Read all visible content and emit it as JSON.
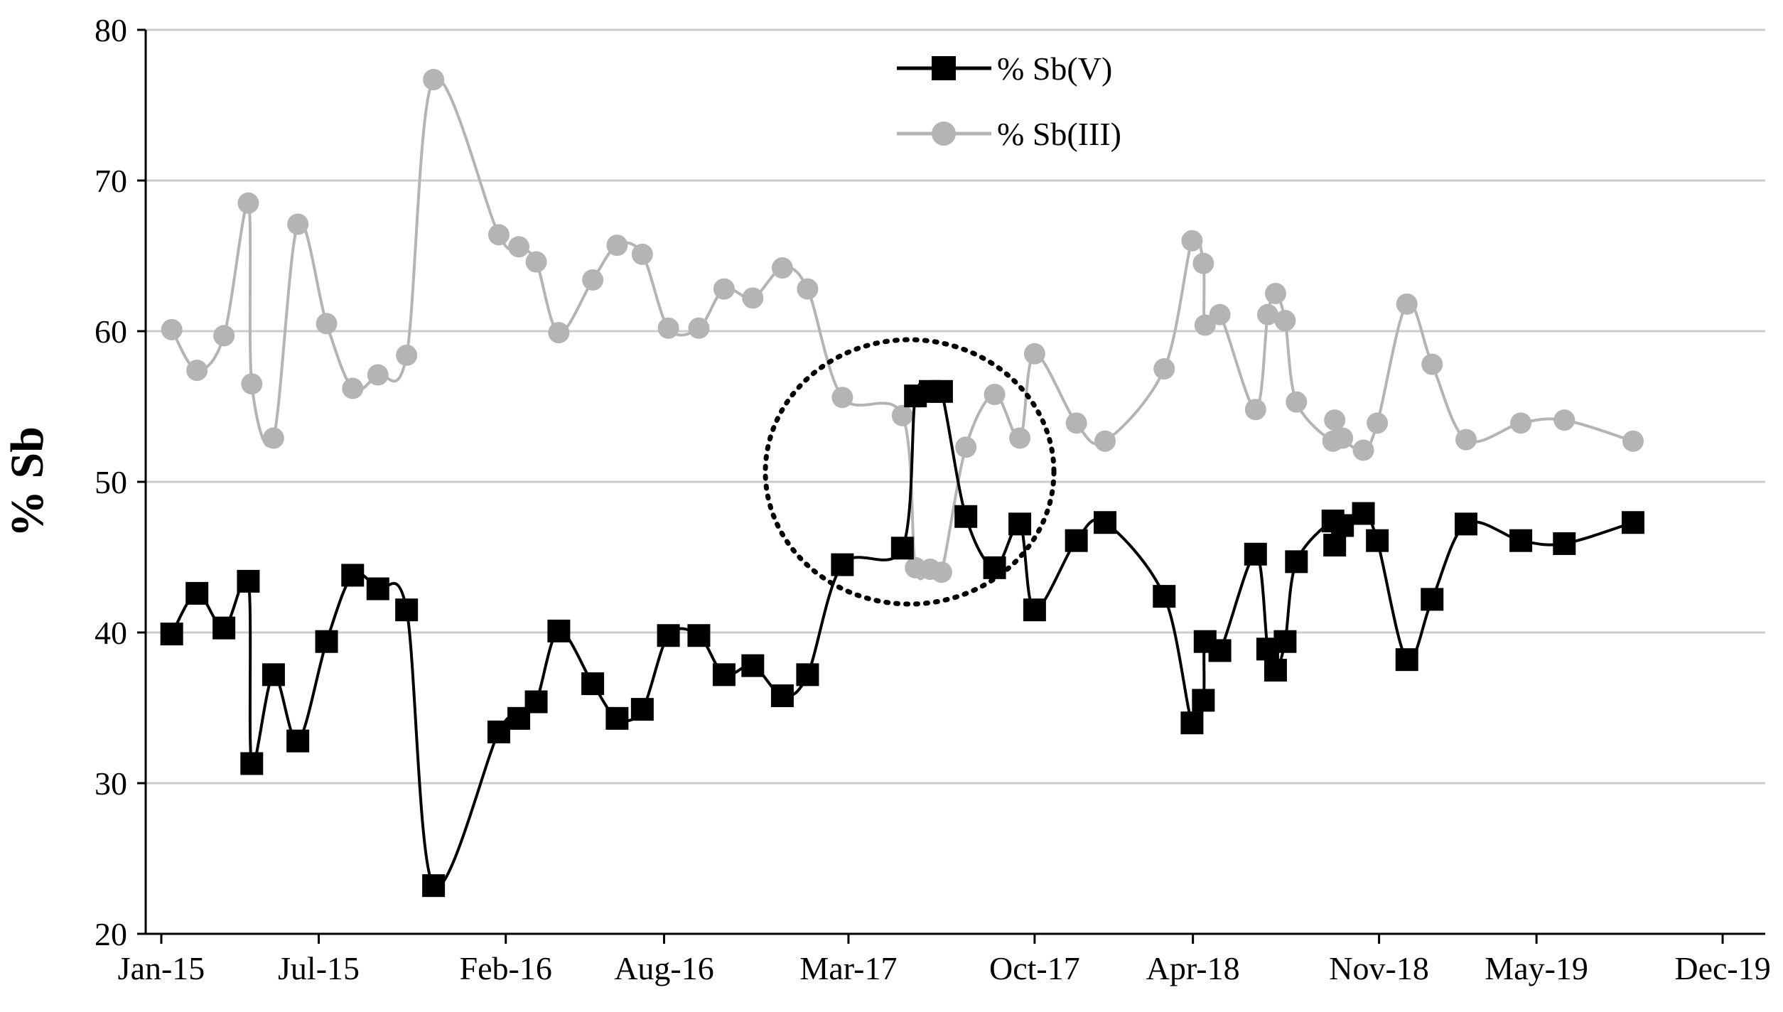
{
  "chart_data": {
    "type": "line",
    "title": "",
    "xlabel": "",
    "ylabel": "% Sb",
    "ylim": [
      20,
      80
    ],
    "yticks": [
      20,
      30,
      40,
      50,
      60,
      70,
      80
    ],
    "xlim": [
      "2015-01-01",
      "2020-01-01"
    ],
    "xticks": [
      {
        "date": "2015-01-01",
        "label": "Jan-15"
      },
      {
        "date": "2015-07-01",
        "label": "Jul-15"
      },
      {
        "date": "2016-02-01",
        "label": "Feb-16"
      },
      {
        "date": "2016-08-01",
        "label": "Aug-16"
      },
      {
        "date": "2017-03-01",
        "label": "Mar-17"
      },
      {
        "date": "2017-10-01",
        "label": "Oct-17"
      },
      {
        "date": "2018-04-01",
        "label": "Apr-18"
      },
      {
        "date": "2018-11-01",
        "label": "Nov-18"
      },
      {
        "date": "2019-05-01",
        "label": "May-19"
      },
      {
        "date": "2019-12-01",
        "label": "Dec-19"
      }
    ],
    "grid": "horizontal",
    "legend_position": "top-center",
    "annotation": {
      "type": "dotted-circle",
      "center": [
        "2017-06-15",
        50
      ],
      "description": ""
    },
    "series": [
      {
        "name": "% Sb(V)",
        "color": "#000000",
        "marker": "square",
        "points": [
          [
            "2015-01-13",
            39.9
          ],
          [
            "2015-02-11",
            42.6
          ],
          [
            "2015-03-14",
            40.3
          ],
          [
            "2015-04-11",
            43.4
          ],
          [
            "2015-04-15",
            31.3
          ],
          [
            "2015-05-10",
            37.2
          ],
          [
            "2015-06-07",
            32.8
          ],
          [
            "2015-07-10",
            39.4
          ],
          [
            "2015-08-09",
            43.8
          ],
          [
            "2015-09-07",
            42.9
          ],
          [
            "2015-10-10",
            41.5
          ],
          [
            "2015-11-10",
            23.2
          ],
          [
            "2016-01-24",
            33.4
          ],
          [
            "2016-02-16",
            34.3
          ],
          [
            "2016-03-07",
            35.4
          ],
          [
            "2016-04-02",
            40.1
          ],
          [
            "2016-05-11",
            36.6
          ],
          [
            "2016-06-08",
            34.3
          ],
          [
            "2016-07-07",
            34.9
          ],
          [
            "2016-08-06",
            39.8
          ],
          [
            "2016-09-10",
            39.8
          ],
          [
            "2016-10-09",
            37.2
          ],
          [
            "2016-11-11",
            37.8
          ],
          [
            "2016-12-15",
            35.8
          ],
          [
            "2017-01-13",
            37.2
          ],
          [
            "2017-02-22",
            44.5
          ],
          [
            "2017-05-02",
            45.6
          ],
          [
            "2017-05-17",
            55.7
          ],
          [
            "2017-06-03",
            56.0
          ],
          [
            "2017-06-16",
            56.0
          ],
          [
            "2017-07-14",
            47.7
          ],
          [
            "2017-08-16",
            44.3
          ],
          [
            "2017-09-14",
            47.2
          ],
          [
            "2017-10-01",
            41.5
          ],
          [
            "2017-11-18",
            46.1
          ],
          [
            "2017-12-21",
            47.3
          ],
          [
            "2018-02-27",
            42.4
          ],
          [
            "2018-03-31",
            34.0
          ],
          [
            "2018-04-13",
            35.5
          ],
          [
            "2018-04-15",
            39.4
          ],
          [
            "2018-05-02",
            38.8
          ],
          [
            "2018-06-12",
            45.2
          ],
          [
            "2018-06-26",
            38.9
          ],
          [
            "2018-07-05",
            37.5
          ],
          [
            "2018-07-16",
            39.4
          ],
          [
            "2018-07-29",
            44.7
          ],
          [
            "2018-09-09",
            47.4
          ],
          [
            "2018-09-11",
            45.8
          ],
          [
            "2018-09-20",
            47.1
          ],
          [
            "2018-10-14",
            47.9
          ],
          [
            "2018-10-30",
            46.1
          ],
          [
            "2018-12-03",
            38.2
          ],
          [
            "2019-01-01",
            42.2
          ],
          [
            "2019-02-09",
            47.2
          ],
          [
            "2019-04-13",
            46.1
          ],
          [
            "2019-06-02",
            45.9
          ],
          [
            "2019-08-20",
            47.3
          ]
        ]
      },
      {
        "name": "% Sb(III)",
        "color": "#b4b4b4",
        "marker": "circle",
        "points": [
          [
            "2015-01-13",
            60.1
          ],
          [
            "2015-02-11",
            57.4
          ],
          [
            "2015-03-14",
            59.7
          ],
          [
            "2015-04-11",
            68.5
          ],
          [
            "2015-04-15",
            56.5
          ],
          [
            "2015-05-10",
            52.9
          ],
          [
            "2015-06-07",
            67.1
          ],
          [
            "2015-07-10",
            60.5
          ],
          [
            "2015-08-09",
            56.2
          ],
          [
            "2015-09-07",
            57.1
          ],
          [
            "2015-10-10",
            58.4
          ],
          [
            "2015-11-10",
            76.7
          ],
          [
            "2016-01-24",
            66.4
          ],
          [
            "2016-02-16",
            65.6
          ],
          [
            "2016-03-07",
            64.6
          ],
          [
            "2016-04-02",
            59.9
          ],
          [
            "2016-05-11",
            63.4
          ],
          [
            "2016-06-08",
            65.7
          ],
          [
            "2016-07-07",
            65.1
          ],
          [
            "2016-08-06",
            60.2
          ],
          [
            "2016-09-10",
            60.2
          ],
          [
            "2016-10-09",
            62.8
          ],
          [
            "2016-11-11",
            62.2
          ],
          [
            "2016-12-15",
            64.2
          ],
          [
            "2017-01-13",
            62.8
          ],
          [
            "2017-02-22",
            55.6
          ],
          [
            "2017-05-02",
            54.4
          ],
          [
            "2017-05-17",
            44.3
          ],
          [
            "2017-06-03",
            44.2
          ],
          [
            "2017-06-16",
            44.0
          ],
          [
            "2017-07-14",
            52.3
          ],
          [
            "2017-08-16",
            55.8
          ],
          [
            "2017-09-14",
            52.9
          ],
          [
            "2017-10-01",
            58.5
          ],
          [
            "2017-11-18",
            53.9
          ],
          [
            "2017-12-21",
            52.7
          ],
          [
            "2018-02-27",
            57.5
          ],
          [
            "2018-03-31",
            66.0
          ],
          [
            "2018-04-13",
            64.5
          ],
          [
            "2018-04-15",
            60.4
          ],
          [
            "2018-05-02",
            61.1
          ],
          [
            "2018-06-12",
            54.8
          ],
          [
            "2018-06-26",
            61.1
          ],
          [
            "2018-07-05",
            62.5
          ],
          [
            "2018-07-16",
            60.7
          ],
          [
            "2018-07-29",
            55.3
          ],
          [
            "2018-09-09",
            52.7
          ],
          [
            "2018-09-11",
            54.1
          ],
          [
            "2018-09-20",
            52.9
          ],
          [
            "2018-10-14",
            52.1
          ],
          [
            "2018-10-30",
            53.9
          ],
          [
            "2018-12-03",
            61.8
          ],
          [
            "2019-01-01",
            57.8
          ],
          [
            "2019-02-09",
            52.8
          ],
          [
            "2019-04-13",
            53.9
          ],
          [
            "2019-06-02",
            54.1
          ],
          [
            "2019-08-20",
            52.7
          ]
        ]
      }
    ]
  }
}
